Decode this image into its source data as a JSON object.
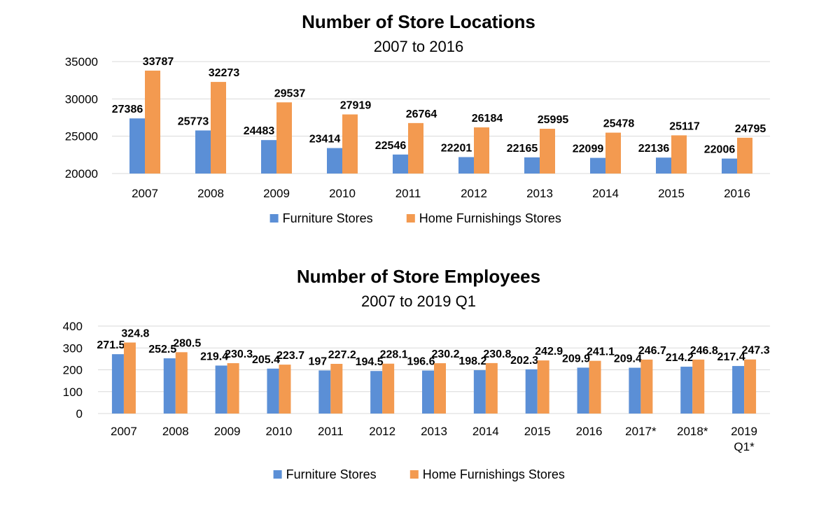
{
  "colors": {
    "furniture": "#5b8fd6",
    "home": "#f39a50"
  },
  "chart_data": [
    {
      "type": "bar",
      "title": "Number of Store Locations",
      "subtitle": "2007 to 2016",
      "categories": [
        "2007",
        "2008",
        "2009",
        "2010",
        "2011",
        "2012",
        "2013",
        "2014",
        "2015",
        "2016"
      ],
      "series": [
        {
          "name": "Furniture Stores",
          "values": [
            27386,
            25773,
            24483,
            23414,
            22546,
            22201,
            22165,
            22099,
            22136,
            22006
          ]
        },
        {
          "name": "Home Furnishings Stores",
          "values": [
            33787,
            32273,
            29537,
            27919,
            26764,
            26184,
            25995,
            25478,
            25117,
            24795
          ]
        }
      ],
      "ylim": [
        20000,
        35000
      ],
      "yticks": [
        20000,
        25000,
        30000,
        35000
      ],
      "grid": true,
      "legend": "bottom"
    },
    {
      "type": "bar",
      "title": "Number of Store Employees",
      "subtitle": "2007 to 2019 Q1",
      "categories": [
        "2007",
        "2008",
        "2009",
        "2010",
        "2011",
        "2012",
        "2013",
        "2014",
        "2015",
        "2016",
        "2017*",
        "2018*",
        "2019\nQ1*"
      ],
      "series": [
        {
          "name": "Furniture Stores",
          "values": [
            271.5,
            252.5,
            219.4,
            205.4,
            197,
            194.5,
            196.6,
            198.2,
            202.3,
            209.9,
            209.4,
            214.2,
            217.4
          ]
        },
        {
          "name": "Home Furnishings Stores",
          "values": [
            324.8,
            280.5,
            230.3,
            223.7,
            227.2,
            228.1,
            230.2,
            230.8,
            242.9,
            241.1,
            246.7,
            246.8,
            247.3
          ]
        }
      ],
      "ylim": [
        0,
        400
      ],
      "yticks": [
        0,
        100,
        200,
        300,
        400
      ],
      "grid": true,
      "legend": "bottom"
    }
  ]
}
